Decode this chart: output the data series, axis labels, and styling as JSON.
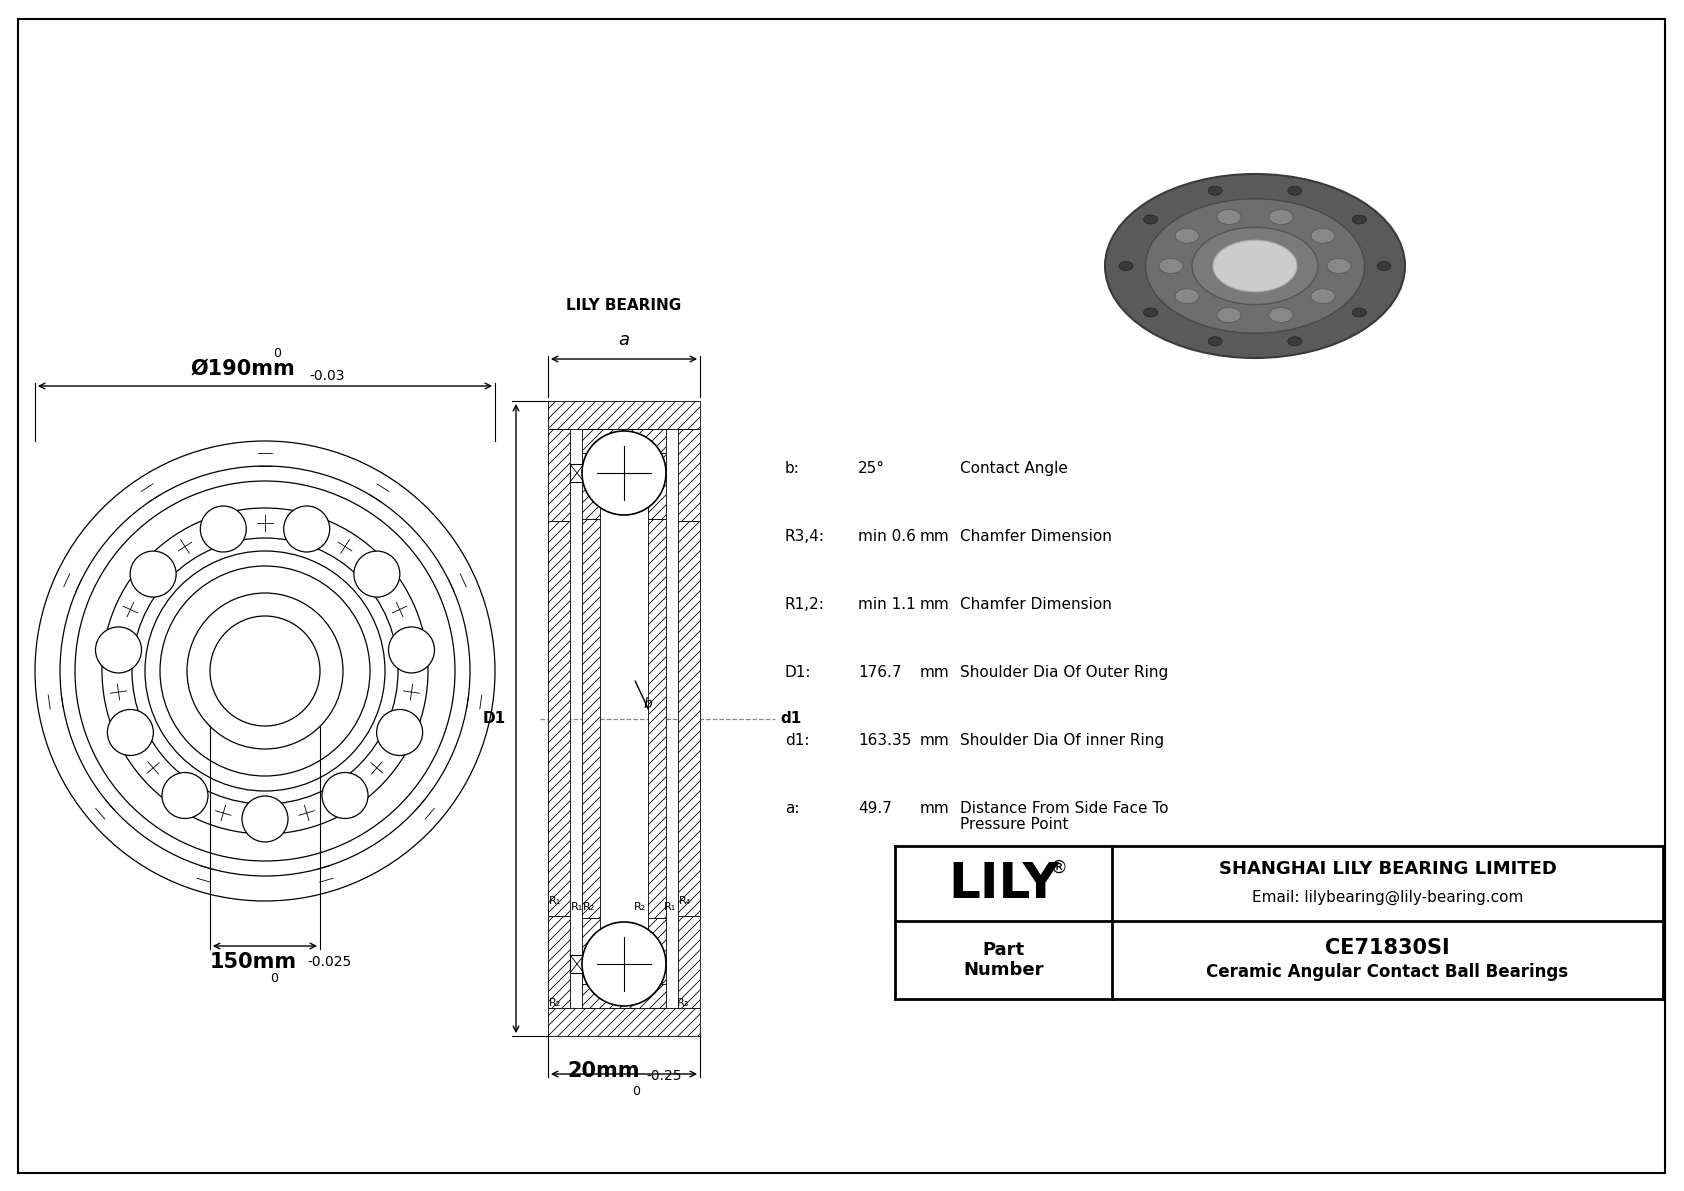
{
  "bg_color": "#ffffff",
  "line_color": "#000000",
  "dashed_color": "#888888",
  "title_dim_outer": "Ø190mm",
  "title_dim_outer_tol_upper": "0",
  "title_dim_outer_tol_lower": "-0.03",
  "title_dim_width": "20mm",
  "title_dim_width_tol_upper": "0",
  "title_dim_width_tol_lower": "-0.25",
  "title_dim_inner": "150mm",
  "title_dim_inner_tol_upper": "0",
  "title_dim_inner_tol_lower": "-0.025",
  "specs": [
    {
      "label": "b:",
      "value": "25°",
      "unit": "",
      "desc": "Contact Angle"
    },
    {
      "label": "R3,4:",
      "value": "min 0.6",
      "unit": "mm",
      "desc": "Chamfer Dimension"
    },
    {
      "label": "R1,2:",
      "value": "min 1.1",
      "unit": "mm",
      "desc": "Chamfer Dimension"
    },
    {
      "label": "D1:",
      "value": "176.7",
      "unit": "mm",
      "desc": "Shoulder Dia Of Outer Ring"
    },
    {
      "label": "d1:",
      "value": "163.35",
      "unit": "mm",
      "desc": "Shoulder Dia Of inner Ring"
    },
    {
      "label": "a:",
      "value": "49.7",
      "unit": "mm",
      "desc": "Distance From Side Face To\nPressure Point"
    }
  ],
  "company_name": "LILY",
  "company_reg": "®",
  "company_full": "SHANGHAI LILY BEARING LIMITED",
  "company_email": "Email: lilybearing@lily-bearing.com",
  "part_label": "Part\nNumber",
  "part_number": "CE71830SI",
  "part_desc": "Ceramic Angular Contact Ball Bearings",
  "watermark": "LILY BEARING"
}
